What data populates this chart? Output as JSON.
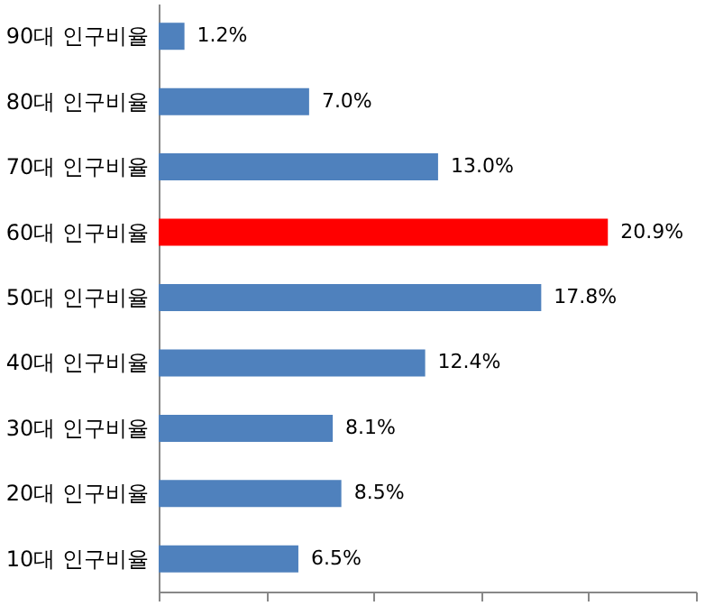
{
  "chart_data": {
    "type": "bar",
    "orientation": "horizontal",
    "categories": [
      "90대 인구비율",
      "80대 인구비율",
      "70대 인구비율",
      "60대 인구비율",
      "50대 인구비율",
      "40대 인구비율",
      "30대 인구비율",
      "20대 인구비율",
      "10대 인구비율"
    ],
    "values": [
      1.2,
      7.0,
      13.0,
      20.9,
      17.8,
      12.4,
      8.1,
      8.5,
      6.5
    ],
    "colors": [
      "#4f81bd",
      "#4f81bd",
      "#4f81bd",
      "#ff0000",
      "#4f81bd",
      "#4f81bd",
      "#4f81bd",
      "#4f81bd",
      "#4f81bd"
    ],
    "value_labels": [
      "1.2%",
      "7.0%",
      "13.0%",
      "20.9%",
      "17.8%",
      "12.4%",
      "8.1%",
      "8.5%",
      "6.5%"
    ],
    "xlim": [
      0,
      25
    ],
    "xticks": [
      {
        "value": 0,
        "label": null
      },
      {
        "value": 5,
        "label": null
      },
      {
        "value": 10,
        "label": null
      },
      {
        "value": 15,
        "label": null
      },
      {
        "value": 20,
        "label": null
      },
      {
        "value": 25,
        "label": null
      }
    ],
    "tick_labels": "y"
  }
}
